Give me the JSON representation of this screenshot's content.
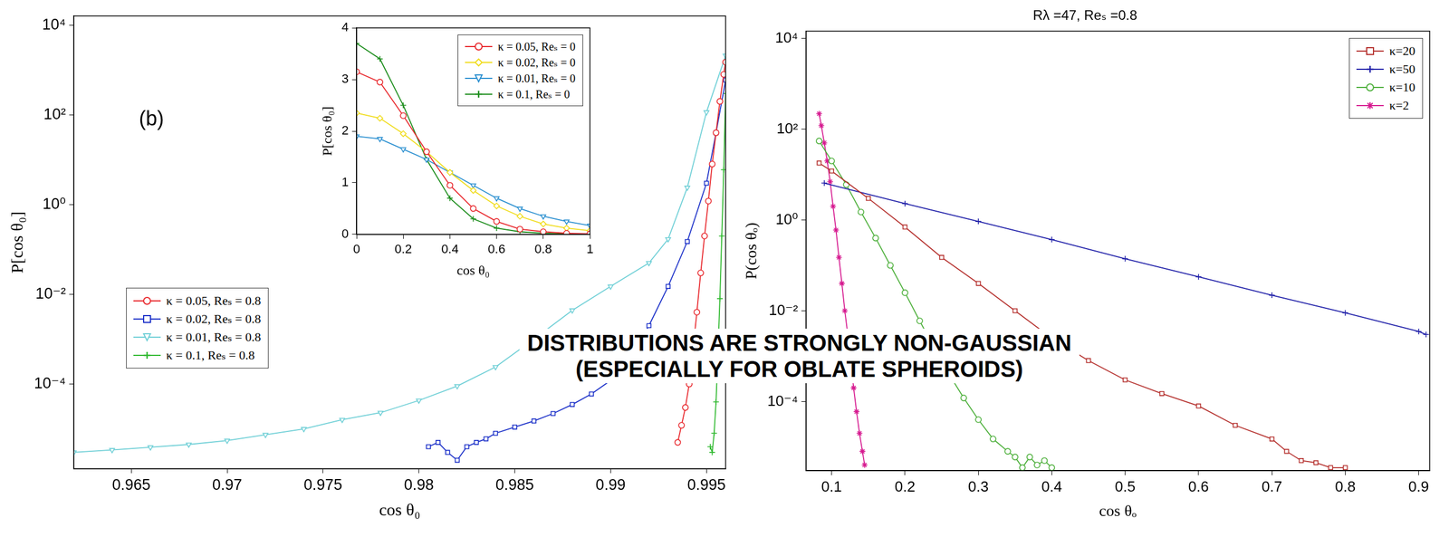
{
  "annotation": [
    "DISTRIBUTIONS ARE STRONGLY NON-GAUSSIAN",
    "(ESPECIALLY FOR OBLATE SPHEROIDS)"
  ],
  "chart_data": [
    {
      "type": "line",
      "panel_label": "(b)",
      "x_label": "cos θ₀",
      "y_label": "P[cos θ₀]",
      "log": "y",
      "grid": false,
      "legend": "left",
      "xlim": [
        0.962,
        0.996
      ],
      "xticks": [
        0.965,
        0.97,
        0.975,
        0.98,
        0.985,
        0.99,
        0.995
      ],
      "ylim": [
        1.3e-06,
        16000
      ],
      "yticks": [
        {
          "value": 0.0001,
          "label": "10⁻⁴"
        },
        {
          "value": 0.01,
          "label": "10⁻²"
        },
        {
          "value": 1,
          "label": "10⁰"
        },
        {
          "value": 100,
          "label": "10²"
        },
        {
          "value": 10000,
          "label": "10⁴"
        }
      ],
      "series": [
        {
          "name": "κ = 0.05, Reₛ = 0.8",
          "color": "#e8262b",
          "marker": "circle",
          "x": [
            0.9935,
            0.9937,
            0.9939,
            0.9941,
            0.9943,
            0.9945,
            0.9947,
            0.9949,
            0.9951,
            0.9953,
            0.9955,
            0.9957,
            0.9959,
            0.996
          ],
          "values": [
            5e-06,
            1.2e-05,
            3e-05,
            0.0001,
            0.0006,
            0.004,
            0.03,
            0.2,
            1.2,
            8,
            40,
            200,
            800,
            1500
          ]
        },
        {
          "name": "κ = 0.02, Reₛ = 0.8",
          "color": "#1a2fc8",
          "marker": "square",
          "x": [
            0.9805,
            0.981,
            0.9815,
            0.982,
            0.9825,
            0.983,
            0.9835,
            0.984,
            0.985,
            0.986,
            0.987,
            0.988,
            0.989,
            0.99,
            0.991,
            0.992,
            0.993,
            0.994,
            0.995,
            0.9955,
            0.996
          ],
          "values": [
            4e-06,
            5e-06,
            3e-06,
            2e-06,
            4e-06,
            5e-06,
            6e-06,
            8e-06,
            1.1e-05,
            1.5e-05,
            2.2e-05,
            3.5e-05,
            6e-05,
            0.00012,
            0.0004,
            0.002,
            0.015,
            0.15,
            3,
            40,
            600
          ]
        },
        {
          "name": "κ = 0.01, Reₛ = 0.8",
          "color": "#6ecfd6",
          "marker": "triangle_down",
          "x": [
            0.962,
            0.964,
            0.966,
            0.968,
            0.97,
            0.972,
            0.974,
            0.976,
            0.978,
            0.98,
            0.982,
            0.984,
            0.986,
            0.988,
            0.99,
            0.992,
            0.993,
            0.994,
            0.995,
            0.996
          ],
          "values": [
            3e-06,
            3.4e-06,
            3.9e-06,
            4.5e-06,
            5.5e-06,
            7.4e-06,
            1e-05,
            1.6e-05,
            2.3e-05,
            4.3e-05,
            9e-05,
            0.00024,
            0.001,
            0.0044,
            0.015,
            0.05,
            0.17,
            2.4,
            115,
            2100
          ]
        },
        {
          "name": "κ = 0.1, Reₛ = 0.8",
          "color": "#2db82d",
          "marker": "plus",
          "x": [
            0.9952,
            0.9953,
            0.9954,
            0.9955,
            0.9956,
            0.9957,
            0.9958,
            0.9959,
            0.996
          ],
          "values": [
            4e-06,
            3e-06,
            8e-06,
            4e-05,
            0.0005,
            0.008,
            0.2,
            6,
            300
          ]
        }
      ]
    },
    {
      "type": "line",
      "x_label": "cos θ₀",
      "y_label": "P[cos θ₀]",
      "grid": false,
      "legend": "upper right",
      "xlim": [
        0,
        1
      ],
      "xticks": [
        0,
        0.2,
        0.4,
        0.6,
        0.8,
        1
      ],
      "ylim": [
        0,
        4
      ],
      "yticks": [
        0,
        1,
        2,
        3,
        4
      ],
      "series": [
        {
          "name": "κ = 0.05, Reₛ = 0",
          "color": "#e8262b",
          "marker": "circle",
          "x": [
            0,
            0.1,
            0.2,
            0.3,
            0.4,
            0.5,
            0.6,
            0.7,
            0.8,
            0.9,
            1
          ],
          "values": [
            3.15,
            2.95,
            2.3,
            1.6,
            0.95,
            0.5,
            0.25,
            0.1,
            0.05,
            0.02,
            0.01
          ]
        },
        {
          "name": "κ = 0.02, Reₛ = 0",
          "color": "#f0dc1a",
          "marker": "diamond",
          "x": [
            0,
            0.1,
            0.2,
            0.3,
            0.4,
            0.5,
            0.6,
            0.7,
            0.8,
            0.9,
            1
          ],
          "values": [
            2.35,
            2.25,
            1.95,
            1.6,
            1.2,
            0.85,
            0.55,
            0.35,
            0.2,
            0.12,
            0.07
          ]
        },
        {
          "name": "κ = 0.01, Reₛ = 0",
          "color": "#2a8fd0",
          "marker": "triangle_down",
          "x": [
            0,
            0.1,
            0.2,
            0.3,
            0.4,
            0.5,
            0.6,
            0.7,
            0.8,
            0.9,
            1
          ],
          "values": [
            1.9,
            1.85,
            1.65,
            1.45,
            1.2,
            0.95,
            0.7,
            0.5,
            0.35,
            0.25,
            0.17
          ]
        },
        {
          "name": "κ = 0.1, Reₛ = 0",
          "color": "#1a8c1a",
          "marker": "plus",
          "x": [
            0,
            0.1,
            0.2,
            0.3,
            0.4,
            0.5,
            0.6,
            0.7,
            0.8,
            0.9,
            1
          ],
          "values": [
            3.7,
            3.4,
            2.5,
            1.45,
            0.7,
            0.3,
            0.12,
            0.05,
            0.02,
            0.01,
            0.005
          ]
        }
      ]
    },
    {
      "type": "line",
      "title": "Rλ =47, Reₛ =0.8",
      "x_label": "cos θₒ",
      "y_label": "P(cos θₒ)",
      "log": "y",
      "grid": false,
      "legend": "upper right",
      "xlim": [
        0.065,
        0.915
      ],
      "xticks": [
        0.1,
        0.2,
        0.3,
        0.4,
        0.5,
        0.6,
        0.7,
        0.8,
        0.9
      ],
      "ylim": [
        3e-06,
        14500
      ],
      "yticks": [
        {
          "value": 0.0001,
          "label": "10⁻⁴"
        },
        {
          "value": 0.01,
          "label": "10⁻²"
        },
        {
          "value": 1,
          "label": "10⁰"
        },
        {
          "value": 100,
          "label": "10²"
        },
        {
          "value": 10000,
          "label": "10⁴"
        }
      ],
      "series": [
        {
          "name": "κ=20",
          "color": "#b5312e",
          "marker": "square",
          "x": [
            0.083,
            0.1,
            0.15,
            0.2,
            0.25,
            0.3,
            0.35,
            0.4,
            0.45,
            0.5,
            0.55,
            0.6,
            0.65,
            0.7,
            0.72,
            0.74,
            0.76,
            0.78,
            0.8
          ],
          "values": [
            18,
            12,
            3,
            0.7,
            0.15,
            0.04,
            0.01,
            0.0025,
            0.0008,
            0.0003,
            0.00015,
            8e-05,
            3e-05,
            1.5e-05,
            8e-06,
            5e-06,
            4.5e-06,
            3.5e-06,
            3.5e-06
          ]
        },
        {
          "name": "κ=50",
          "color": "#1f1fa8",
          "marker": "plus",
          "x": [
            0.09,
            0.2,
            0.3,
            0.4,
            0.5,
            0.6,
            0.7,
            0.8,
            0.9,
            0.91
          ],
          "values": [
            6.5,
            2.3,
            0.93,
            0.37,
            0.14,
            0.056,
            0.022,
            0.009,
            0.0035,
            0.003
          ]
        },
        {
          "name": "κ=10",
          "color": "#4caf3a",
          "marker": "circle",
          "x": [
            0.083,
            0.1,
            0.12,
            0.14,
            0.16,
            0.18,
            0.2,
            0.22,
            0.24,
            0.26,
            0.28,
            0.3,
            0.32,
            0.34,
            0.35,
            0.36,
            0.37,
            0.38,
            0.39,
            0.4
          ],
          "values": [
            55,
            20,
            6,
            1.5,
            0.4,
            0.1,
            0.025,
            0.006,
            0.0015,
            0.0004,
            0.00012,
            4e-05,
            1.5e-05,
            8e-06,
            6e-06,
            3.5e-06,
            6e-06,
            4e-06,
            5e-06,
            3.5e-06
          ]
        },
        {
          "name": "κ=2",
          "color": "#d6198f",
          "marker": "star",
          "x": [
            0.083,
            0.086,
            0.09,
            0.094,
            0.098,
            0.102,
            0.106,
            0.11,
            0.114,
            0.118,
            0.122,
            0.126,
            0.13,
            0.134,
            0.138,
            0.142,
            0.145
          ],
          "values": [
            220,
            120,
            50,
            20,
            7,
            2,
            0.6,
            0.15,
            0.04,
            0.01,
            0.003,
            0.0008,
            0.0002,
            6e-05,
            2e-05,
            8e-06,
            4e-06
          ]
        }
      ]
    }
  ]
}
